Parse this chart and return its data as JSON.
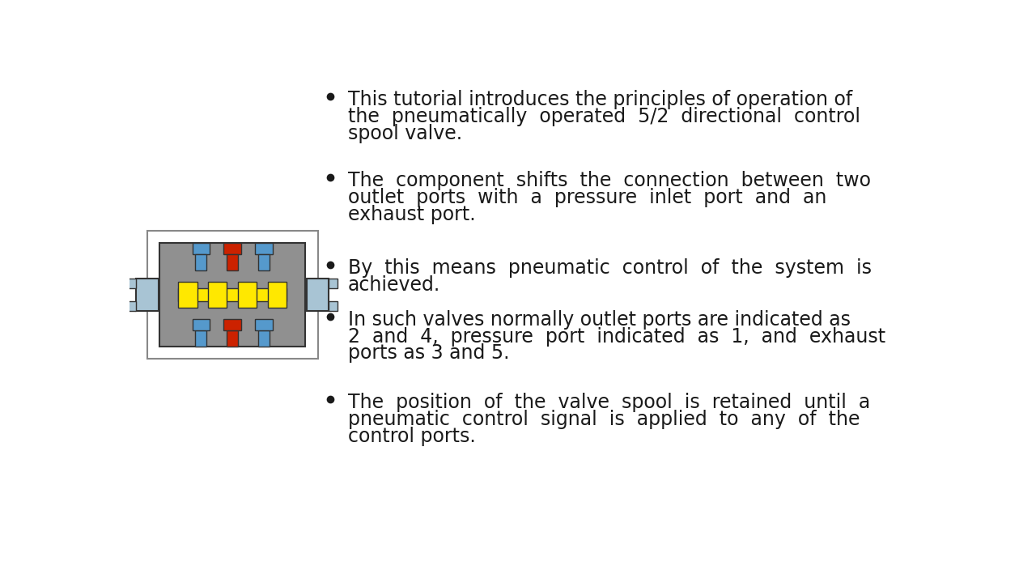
{
  "background_color": "#ffffff",
  "bullet_points": [
    "This tutorial introduces the principles of operation of the pneumatically operated 5/2 directional control spool valve.",
    "The component shifts the connection between two outlet ports with a pressure inlet port and an exhaust port.",
    "By this means pneumatic control of the system is achieved.",
    "In such valves normally outlet ports are indicated as 2 and 4, pressure port indicated as 1, and exhaust ports as 3 and 5.",
    "The position of the valve spool is retained until a pneumatic control signal is applied to any of the control ports."
  ],
  "font_size": 17,
  "text_color": "#1a1a1a",
  "gray_color": "#909090",
  "yellow_color": "#FFE800",
  "blue_color": "#5599CC",
  "red_color": "#CC2200",
  "light_blue_color": "#A8C4D4",
  "outline_color": "#222222",
  "valve_outline": "#333333"
}
